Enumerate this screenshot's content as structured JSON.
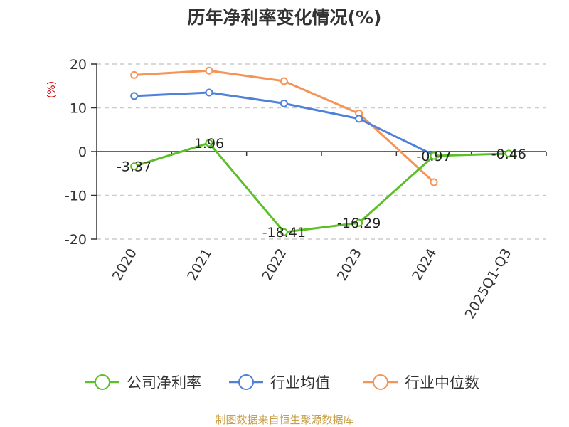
{
  "chart_data": {
    "type": "line",
    "title": "历年净利率变化情况(%)",
    "ylabel": "(%)",
    "categories": [
      "2020",
      "2021",
      "2022",
      "2023",
      "2024",
      "2025Q1-Q3"
    ],
    "ylim": [
      -20,
      20
    ],
    "yticks": [
      20,
      10,
      0,
      -10,
      -20
    ],
    "grid": true,
    "legend_position": "bottom",
    "series": [
      {
        "name": "公司净利率",
        "color": "#5bbf27",
        "values": [
          -3.37,
          1.96,
          -18.41,
          -16.29,
          -0.97,
          -0.46
        ],
        "labels": [
          "-3.37",
          "1.96",
          "-18.41",
          "-16.29",
          "-0.97",
          "-0.46"
        ]
      },
      {
        "name": "行业均值",
        "color": "#4f81d9",
        "values": [
          12.7,
          13.5,
          11.0,
          7.5,
          -0.8,
          null
        ]
      },
      {
        "name": "行业中位数",
        "color": "#f59457",
        "values": [
          17.5,
          18.5,
          16.1,
          8.7,
          -7.0,
          null
        ]
      }
    ],
    "source": "制图数据来自恒生聚源数据库"
  }
}
